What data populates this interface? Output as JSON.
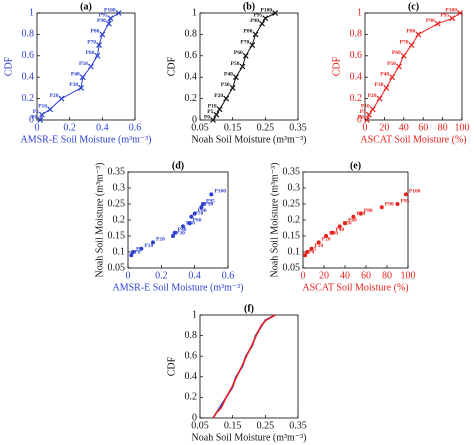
{
  "chart_data": [
    {
      "type": "line",
      "panel": "(a)",
      "marker": "x",
      "color": "#2b3fd1",
      "xlabel_color": "#2b3fd1",
      "ylabel_color": "#2b3fd1",
      "xlabel": "AMSR-E Soil Moisture (m³m⁻³)",
      "ylabel": "CDF",
      "x": [
        0.02,
        0.03,
        0.08,
        0.15,
        0.27,
        0.28,
        0.33,
        0.37,
        0.38,
        0.4,
        0.44,
        0.45,
        0.5
      ],
      "values": [
        0,
        0.05,
        0.1,
        0.2,
        0.3,
        0.4,
        0.5,
        0.6,
        0.7,
        0.8,
        0.9,
        0.95,
        1
      ],
      "point_labels": [
        "P0",
        "P5",
        "P10",
        "P20",
        "P30",
        "P40",
        "P50",
        "P60",
        "P70",
        "P80",
        "P90",
        "P95",
        "P100"
      ],
      "xlim": [
        0,
        0.6
      ],
      "xticks": [
        0,
        0.2,
        0.4,
        0.6
      ],
      "ylim": [
        0,
        1
      ],
      "yticks": [
        0,
        0.2,
        0.4,
        0.6,
        0.8,
        1
      ]
    },
    {
      "type": "line",
      "panel": "(b)",
      "marker": "x",
      "color": "#111111",
      "xlabel_color": "#111111",
      "ylabel_color": "#111111",
      "xlabel": "Noah Soil Moisture (m³m⁻³)",
      "ylabel": "CDF",
      "x": [
        0.09,
        0.1,
        0.11,
        0.13,
        0.15,
        0.16,
        0.18,
        0.19,
        0.21,
        0.22,
        0.24,
        0.25,
        0.28
      ],
      "values": [
        0,
        0.05,
        0.1,
        0.2,
        0.3,
        0.4,
        0.5,
        0.6,
        0.7,
        0.8,
        0.9,
        0.95,
        1
      ],
      "point_labels": [
        "P0",
        "P5",
        "P10",
        "P20",
        "P30",
        "P40",
        "P50",
        "P60",
        "P70",
        "P80",
        "P90",
        "P95",
        "P100"
      ],
      "xlim": [
        0.05,
        0.35
      ],
      "xticks": [
        0.05,
        0.15,
        0.25,
        0.35
      ],
      "ylim": [
        0,
        1
      ],
      "yticks": [
        0,
        0.2,
        0.4,
        0.6,
        0.8,
        1
      ]
    },
    {
      "type": "line",
      "panel": "(c)",
      "marker": "x",
      "color": "#e8211d",
      "xlabel_color": "#e8211d",
      "ylabel_color": "#e8211d",
      "xlabel": "ASCAT Soil Moisture (%)",
      "ylabel": "CDF",
      "x": [
        2,
        4,
        8,
        15,
        22,
        28,
        35,
        40,
        48,
        55,
        75,
        90,
        98
      ],
      "values": [
        0,
        0.05,
        0.1,
        0.2,
        0.3,
        0.4,
        0.5,
        0.6,
        0.7,
        0.8,
        0.9,
        0.95,
        1
      ],
      "point_labels": [
        "P0",
        "P5",
        "P10",
        "P20",
        "P30",
        "P40",
        "P50",
        "P60",
        "P70",
        "P80",
        "P90",
        "P95",
        "P100"
      ],
      "xlim": [
        0,
        100
      ],
      "xticks": [
        0,
        20,
        40,
        60,
        80,
        100
      ],
      "ylim": [
        0,
        1
      ],
      "yticks": [
        0,
        0.2,
        0.4,
        0.6,
        0.8,
        1
      ]
    },
    {
      "type": "scatter",
      "panel": "(d)",
      "marker": "dot",
      "color": "#2b3fd1",
      "xlabel_color": "#2b3fd1",
      "ylabel_color": "#111111",
      "xlabel": "AMSR-E Soil Moisture (m³m⁻³)",
      "ylabel": "Noah Soil Moisture (m³m⁻³)",
      "x": [
        0.02,
        0.03,
        0.08,
        0.15,
        0.27,
        0.28,
        0.33,
        0.37,
        0.38,
        0.4,
        0.44,
        0.45,
        0.5
      ],
      "values": [
        0.09,
        0.1,
        0.11,
        0.13,
        0.15,
        0.16,
        0.18,
        0.19,
        0.21,
        0.22,
        0.24,
        0.25,
        0.28
      ],
      "point_labels": [
        "P0",
        "P5",
        "P10",
        "P20",
        "P30",
        "P40",
        "P50",
        "P60",
        "P70",
        "P80",
        "P90",
        "P95",
        "P100"
      ],
      "xlim": [
        0,
        0.6
      ],
      "xticks": [
        0,
        0.2,
        0.4,
        0.6
      ],
      "ylim": [
        0.05,
        0.35
      ],
      "yticks": [
        0.05,
        0.1,
        0.15,
        0.2,
        0.25,
        0.3,
        0.35
      ]
    },
    {
      "type": "scatter",
      "panel": "(e)",
      "marker": "dot",
      "color": "#e8211d",
      "xlabel_color": "#e8211d",
      "ylabel_color": "#111111",
      "xlabel": "ASCAT Soil Moisture (%)",
      "ylabel": "Noah Soil Moisture (m³m⁻³)",
      "x": [
        2,
        4,
        8,
        15,
        22,
        28,
        35,
        40,
        48,
        55,
        75,
        90,
        98
      ],
      "values": [
        0.09,
        0.1,
        0.11,
        0.13,
        0.15,
        0.16,
        0.18,
        0.19,
        0.21,
        0.22,
        0.24,
        0.25,
        0.28
      ],
      "point_labels": [
        "P0",
        "P5",
        "P10",
        "P20",
        "P30",
        "P40",
        "P50",
        "P60",
        "P70",
        "P80",
        "P90",
        "P95",
        "P100"
      ],
      "xlim": [
        0,
        100
      ],
      "xticks": [
        0,
        20,
        40,
        60,
        80,
        100
      ],
      "ylim": [
        0.05,
        0.35
      ],
      "yticks": [
        0.05,
        0.1,
        0.15,
        0.2,
        0.25,
        0.3,
        0.35
      ]
    },
    {
      "type": "line",
      "panel": "(f)",
      "marker": "none",
      "xlabel_color": "#111111",
      "ylabel_color": "#111111",
      "xlabel": "Noah Soil Moisture (m³m⁻³)",
      "ylabel": "CDF",
      "series": [
        {
          "color": "#2b3fd1",
          "x": [
            0.09,
            0.1,
            0.11,
            0.13,
            0.15,
            0.16,
            0.18,
            0.19,
            0.21,
            0.22,
            0.24,
            0.25,
            0.28
          ],
          "values": [
            0,
            0.05,
            0.1,
            0.2,
            0.3,
            0.4,
            0.5,
            0.6,
            0.7,
            0.8,
            0.9,
            0.95,
            1
          ]
        },
        {
          "color": "#e8211d",
          "x": [
            0.09,
            0.1,
            0.115,
            0.13,
            0.148,
            0.162,
            0.178,
            0.192,
            0.208,
            0.222,
            0.238,
            0.252,
            0.28
          ],
          "values": [
            0,
            0.05,
            0.1,
            0.2,
            0.3,
            0.4,
            0.5,
            0.6,
            0.7,
            0.8,
            0.9,
            0.95,
            1
          ]
        }
      ],
      "xlim": [
        0.05,
        0.35
      ],
      "xticks": [
        0.05,
        0.15,
        0.25,
        0.35
      ],
      "ylim": [
        0,
        1
      ],
      "yticks": [
        0,
        0.2,
        0.4,
        0.6,
        0.8,
        1
      ]
    }
  ]
}
